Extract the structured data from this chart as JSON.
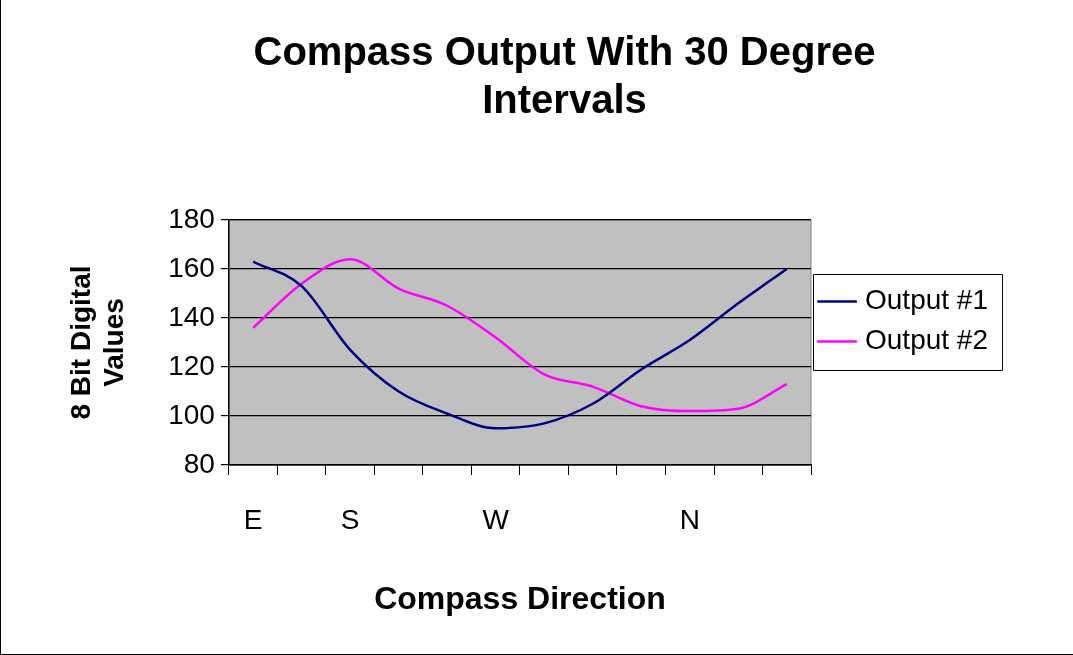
{
  "chart_data": {
    "type": "line",
    "title": [
      "Compass Output With 30 Degree",
      "Intervals"
    ],
    "xlabel": "Compass Direction",
    "ylabel": [
      "8 Bit Digital",
      "Values"
    ],
    "categories": [
      "E",
      null,
      "S",
      null,
      null,
      "W",
      null,
      null,
      null,
      "N",
      null,
      null
    ],
    "series": [
      {
        "name": "Output #1",
        "color": "#000080",
        "values": [
          163,
          153,
          127,
          110,
          101,
          95,
          97,
          105,
          119,
          131,
          146,
          160
        ]
      },
      {
        "name": "Output #2",
        "color": "#ff00ff",
        "values": [
          136,
          154,
          164,
          152,
          145,
          132,
          117,
          112,
          104,
          102,
          103,
          113
        ]
      }
    ],
    "ylim": [
      80,
      180
    ],
    "yticks": [
      80,
      100,
      120,
      140,
      160,
      180
    ],
    "grid": "y",
    "legend": "right",
    "marker": "none",
    "line_style": "solid"
  }
}
